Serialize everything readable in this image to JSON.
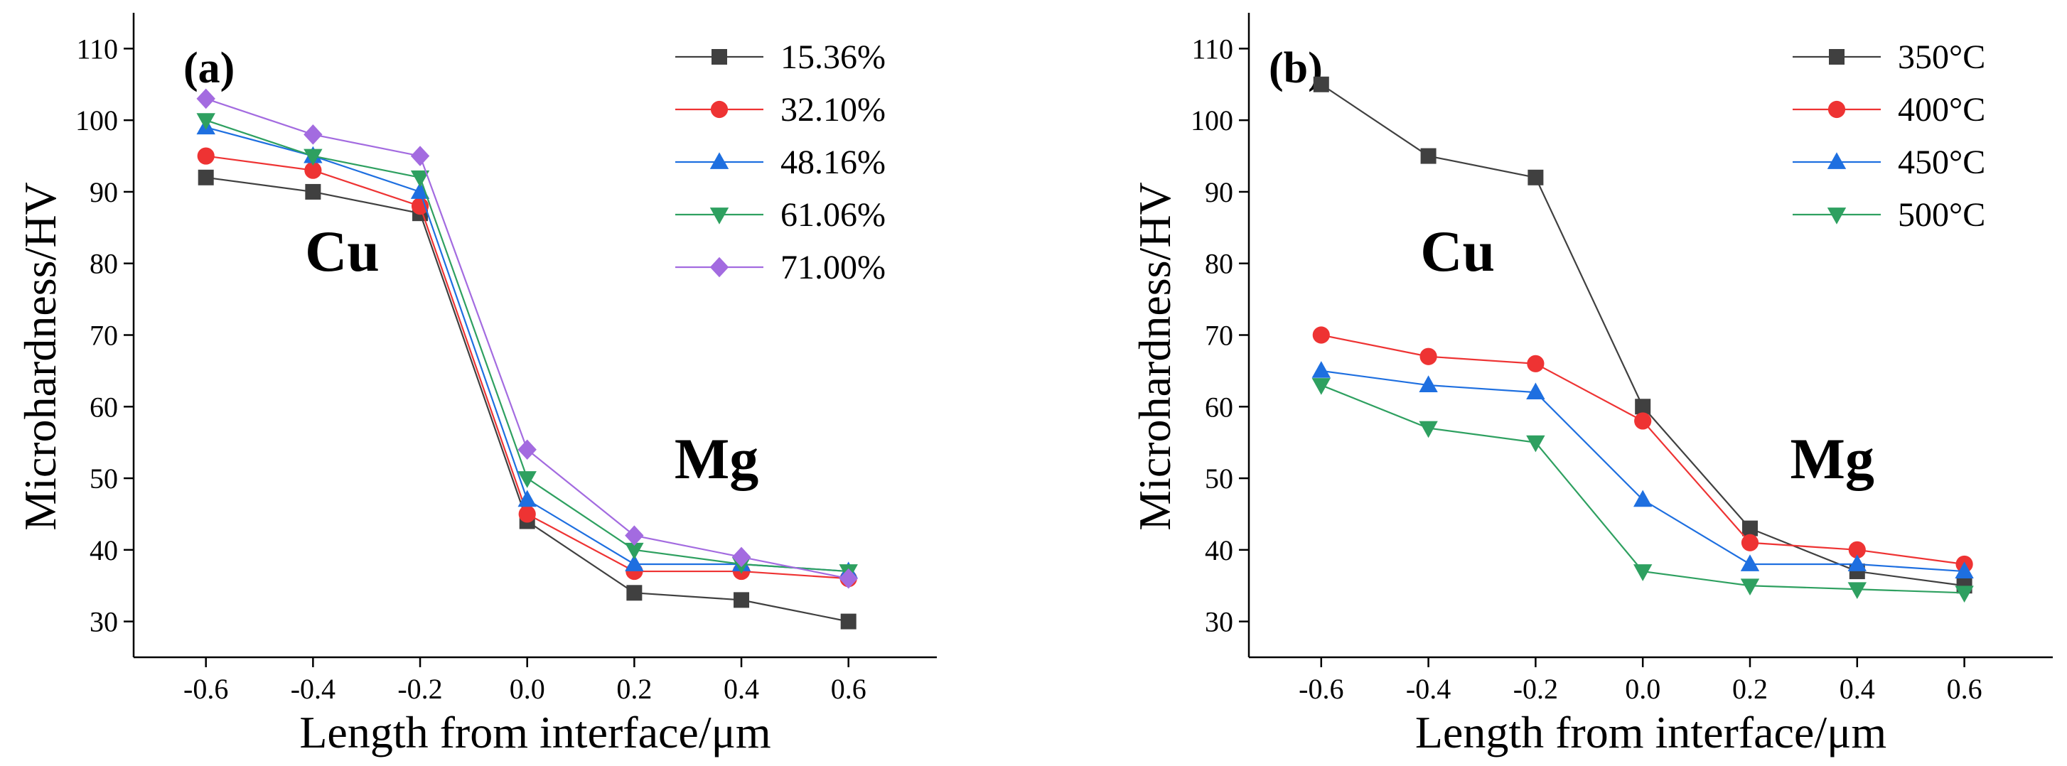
{
  "chart_data": [
    {
      "type": "line",
      "panel_label": "(a)",
      "xlabel": "Length from interface/μm",
      "ylabel": "Microhardness/HV",
      "x": [
        -0.6,
        -0.4,
        -0.2,
        0.0,
        0.2,
        0.4,
        0.6
      ],
      "x_tick_labels": [
        "-0.6",
        "-0.4",
        "-0.2",
        "0.0",
        "0.2",
        "0.4",
        "0.6"
      ],
      "xlim": [
        -0.735,
        0.765
      ],
      "ylim": [
        25,
        115
      ],
      "y_ticks": [
        30,
        40,
        50,
        60,
        70,
        80,
        90,
        100,
        110
      ],
      "grid": false,
      "legend_position": "top-right",
      "annotations": [
        {
          "text": "Cu",
          "x": -0.415,
          "y": 79
        },
        {
          "text": "Mg",
          "x": 0.275,
          "y": 50
        }
      ],
      "series": [
        {
          "name": "15.36%",
          "color": "#404040",
          "marker": "square",
          "values": [
            92,
            90,
            87,
            44,
            34,
            33,
            30
          ]
        },
        {
          "name": "32.10%",
          "color": "#ee3333",
          "marker": "circle",
          "values": [
            95,
            93,
            88,
            45,
            37,
            37,
            36
          ]
        },
        {
          "name": "48.16%",
          "color": "#1e6fe0",
          "marker": "triangle-up",
          "values": [
            99,
            95,
            90,
            47,
            38,
            38,
            37
          ]
        },
        {
          "name": "61.06%",
          "color": "#2ea060",
          "marker": "triangle-down",
          "values": [
            100,
            95,
            92,
            50,
            40,
            38,
            37
          ]
        },
        {
          "name": "71.00%",
          "color": "#a36be0",
          "marker": "diamond",
          "values": [
            103,
            98,
            95,
            54,
            42,
            39,
            36
          ]
        }
      ]
    },
    {
      "type": "line",
      "panel_label": "(b)",
      "xlabel": "Length from interface/μm",
      "ylabel": "Microhardness/HV",
      "x": [
        -0.6,
        -0.4,
        -0.2,
        0.0,
        0.2,
        0.4,
        0.6
      ],
      "x_tick_labels": [
        "-0.6",
        "-0.4",
        "-0.2",
        "0.0",
        "0.2",
        "0.4",
        "0.6"
      ],
      "xlim": [
        -0.735,
        0.765
      ],
      "ylim": [
        25,
        115
      ],
      "y_ticks": [
        30,
        40,
        50,
        60,
        70,
        80,
        90,
        100,
        110
      ],
      "grid": false,
      "legend_position": "top-right",
      "annotations": [
        {
          "text": "Cu",
          "x": -0.415,
          "y": 79
        },
        {
          "text": "Mg",
          "x": 0.275,
          "y": 50
        }
      ],
      "series": [
        {
          "name": "350°C",
          "color": "#404040",
          "marker": "square",
          "values": [
            105,
            95,
            92,
            60,
            43,
            37,
            35
          ]
        },
        {
          "name": "400°C",
          "color": "#ee3333",
          "marker": "circle",
          "values": [
            70,
            67,
            66,
            58,
            41,
            40,
            38
          ]
        },
        {
          "name": "450°C",
          "color": "#1e6fe0",
          "marker": "triangle-up",
          "values": [
            65,
            63,
            62,
            47,
            38,
            38,
            37
          ]
        },
        {
          "name": "500°C",
          "color": "#2ea060",
          "marker": "triangle-down",
          "values": [
            63,
            57,
            55,
            37,
            35,
            34.5,
            34
          ]
        }
      ]
    }
  ]
}
